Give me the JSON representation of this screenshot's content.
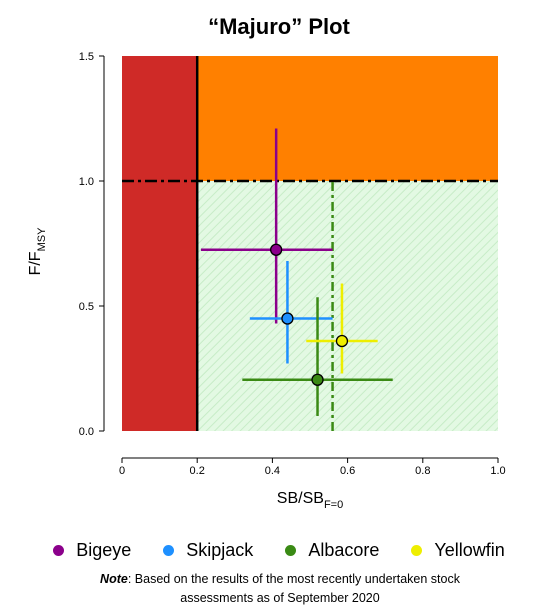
{
  "chart_data": {
    "type": "scatter",
    "title": "“Majuro” Plot",
    "xlabel": "SB/SB",
    "xlabel_sub": "F=0",
    "ylabel": "F/F",
    "ylabel_sub": "MSY",
    "xlim": [
      0,
      1.0
    ],
    "ylim": [
      0,
      1.5
    ],
    "xticks": [
      "0",
      "0.2",
      "0.4",
      "0.6",
      "0.8",
      "1.0"
    ],
    "yticks": [
      "0.0",
      "0.5",
      "1.0",
      "1.5"
    ],
    "xtick_values": [
      0,
      0.2,
      0.4,
      0.6,
      0.8,
      1.0
    ],
    "ytick_values": [
      0,
      0.5,
      1.0,
      1.5
    ],
    "zones": {
      "red": {
        "x_max": 0.2,
        "color": "#cf2a27"
      },
      "orange": {
        "x_min": 0.2,
        "y_min": 1.0,
        "color": "#ff8000"
      },
      "green": {
        "x_min": 0.2,
        "y_max": 1.0,
        "color": "#e3f9e3",
        "hatch": "#c7ecc7"
      }
    },
    "reference_lines": {
      "limit_x": 0.2,
      "f_msy_y": 1.0,
      "target_x": 0.56,
      "target_color": "#3a8a14"
    },
    "series": [
      {
        "name": "Bigeye",
        "color": "#8b008b",
        "x": 0.41,
        "y": 0.725,
        "x_range": [
          0.21,
          0.56
        ],
        "y_range": [
          0.43,
          1.21
        ]
      },
      {
        "name": "Skipjack",
        "color": "#1e90ff",
        "x": 0.44,
        "y": 0.45,
        "x_range": [
          0.34,
          0.56
        ],
        "y_range": [
          0.27,
          0.68
        ]
      },
      {
        "name": "Albacore",
        "color": "#3a8a14",
        "x": 0.52,
        "y": 0.205,
        "x_range": [
          0.32,
          0.72
        ],
        "y_range": [
          0.06,
          0.535
        ]
      },
      {
        "name": "Yellowfin",
        "color": "#eeee00",
        "x": 0.585,
        "y": 0.36,
        "x_range": [
          0.49,
          0.68
        ],
        "y_range": [
          0.23,
          0.59
        ]
      }
    ],
    "legend_position": "bottom"
  },
  "note": {
    "label": "Note",
    "text": ": Based on the results of the most recently undertaken stock assessments as of September 2020"
  }
}
